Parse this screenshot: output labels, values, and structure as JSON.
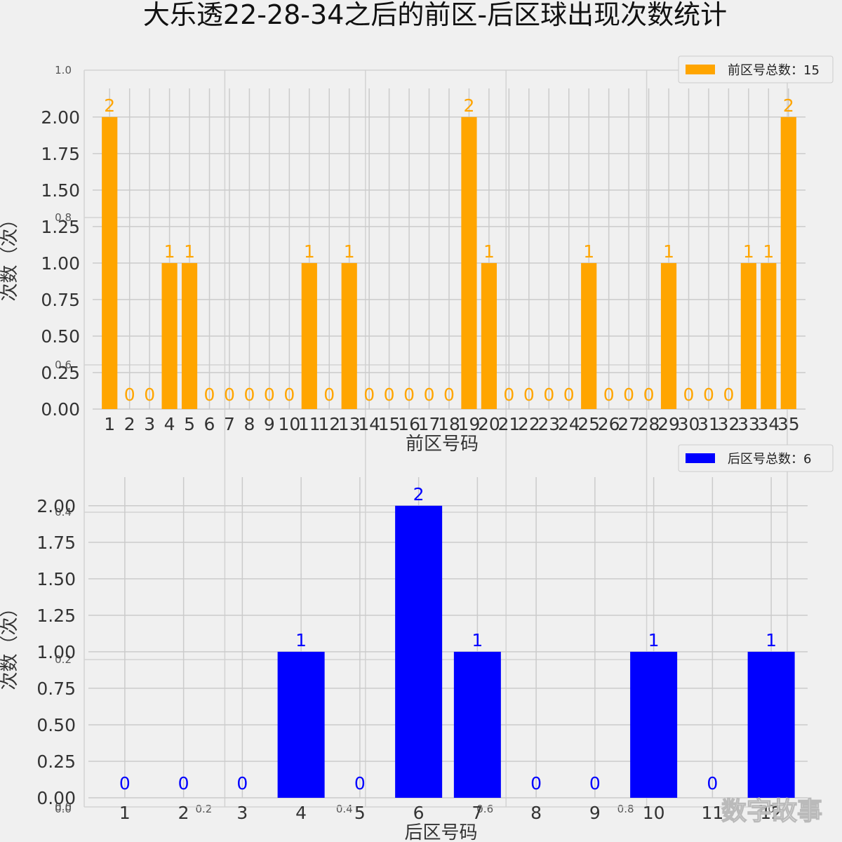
{
  "title": "大乐透22-28-34之后的前区-后区球出现次数统计",
  "watermark": "数字故事",
  "background_axis_ticks": {
    "x": [
      "0.0",
      "0.2",
      "0.4",
      "0.6",
      "0.8",
      "1.0"
    ],
    "y": [
      "1.0",
      "0.8",
      "0.6",
      "0.4",
      "0.2",
      "0.0"
    ]
  },
  "chart_data": [
    {
      "type": "bar",
      "title": "",
      "xlabel": "前区号码",
      "ylabel": "次数（次）",
      "ylim": [
        0,
        2.1
      ],
      "yticks": [
        "0.00",
        "0.25",
        "0.50",
        "0.75",
        "1.00",
        "1.25",
        "1.50",
        "1.75",
        "2.00"
      ],
      "grid": true,
      "legend": {
        "label": "前区号总数：15",
        "placement": "top-right"
      },
      "color": "#ffa500",
      "categories": [
        "1",
        "2",
        "3",
        "4",
        "5",
        "6",
        "7",
        "8",
        "9",
        "10",
        "11",
        "12",
        "13",
        "14",
        "15",
        "16",
        "17",
        "18",
        "19",
        "20",
        "21",
        "22",
        "23",
        "24",
        "25",
        "26",
        "27",
        "28",
        "29",
        "30",
        "31",
        "32",
        "33",
        "34",
        "35"
      ],
      "values": [
        2,
        0,
        0,
        1,
        1,
        0,
        0,
        0,
        0,
        0,
        1,
        0,
        1,
        0,
        0,
        0,
        0,
        0,
        2,
        1,
        0,
        0,
        0,
        0,
        1,
        0,
        0,
        0,
        1,
        0,
        0,
        0,
        1,
        1,
        2
      ],
      "data_labels": [
        "2",
        "0",
        "0",
        "1",
        "1",
        "0",
        "0",
        "0",
        "0",
        "0",
        "1",
        "0",
        "1",
        "0",
        "0",
        "0",
        "0",
        "0",
        "2",
        "1",
        "0",
        "0",
        "0",
        "0",
        "1",
        "0",
        "0",
        "0",
        "1",
        "0",
        "0",
        "0",
        "1",
        "1",
        "2"
      ]
    },
    {
      "type": "bar",
      "title": "",
      "xlabel": "后区号码",
      "ylabel": "次数（次）",
      "ylim": [
        0,
        2.1
      ],
      "yticks": [
        "0.00",
        "0.25",
        "0.50",
        "0.75",
        "1.00",
        "1.25",
        "1.50",
        "1.75",
        "2.00"
      ],
      "grid": true,
      "legend": {
        "label": "后区号总数：6",
        "placement": "top-right"
      },
      "color": "#0000ff",
      "categories": [
        "1",
        "2",
        "3",
        "4",
        "5",
        "6",
        "7",
        "8",
        "9",
        "10",
        "11",
        "12"
      ],
      "values": [
        0,
        0,
        0,
        1,
        0,
        2,
        1,
        0,
        0,
        1,
        0,
        1
      ],
      "data_labels": [
        "0",
        "0",
        "0",
        "1",
        "0",
        "2",
        "1",
        "0",
        "0",
        "1",
        "0",
        "1"
      ]
    }
  ]
}
